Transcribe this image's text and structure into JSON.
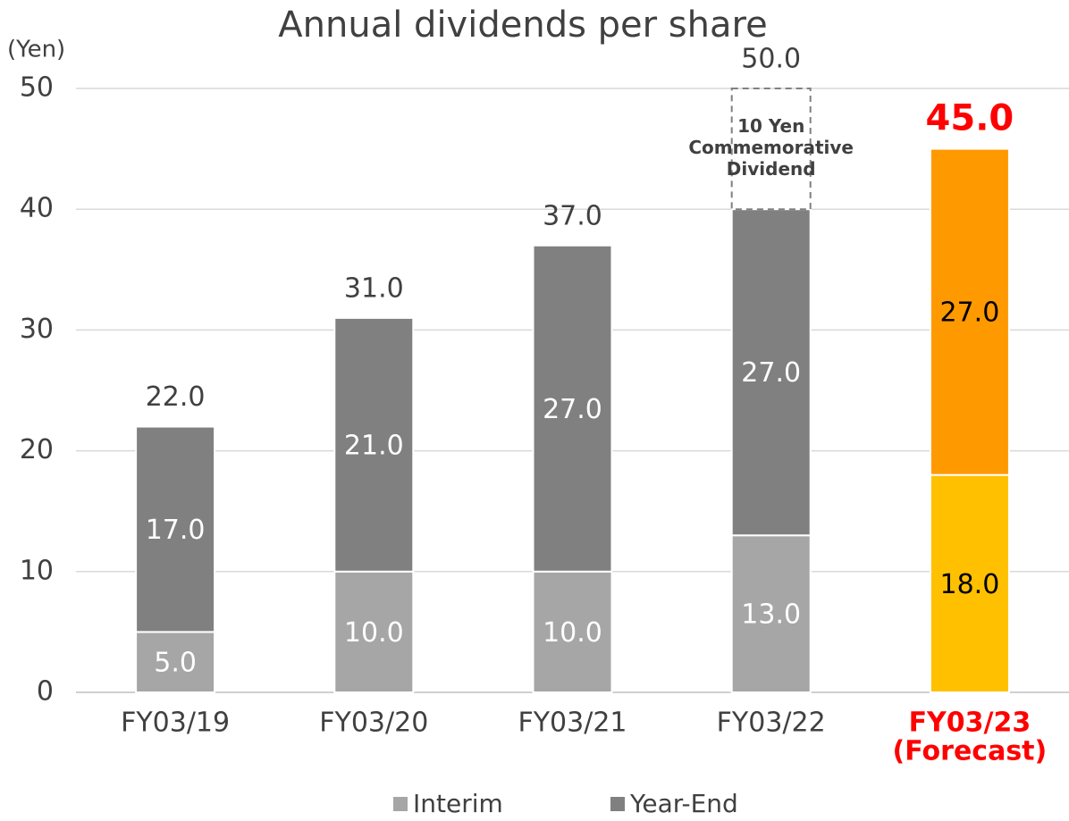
{
  "chart_data": {
    "type": "stacked_bar",
    "title": "Annual dividends per share",
    "y_label": "(Yen)",
    "categories": [
      "FY03/19",
      "FY03/20",
      "FY03/21",
      "FY03/22",
      "FY03/23"
    ],
    "category_notes": [
      null,
      null,
      null,
      null,
      "(Forecast)"
    ],
    "highlight": {
      "index": 4,
      "color": "#ff0000"
    },
    "series": [
      {
        "name": "Interim",
        "color": "#a6a6a6",
        "colors": [
          "#a6a6a6",
          "#a6a6a6",
          "#a6a6a6",
          "#a6a6a6",
          "#ffc000"
        ],
        "label_colors": [
          "#ffffff",
          "#ffffff",
          "#ffffff",
          "#ffffff",
          "#000000"
        ],
        "values": [
          5,
          10,
          10,
          13,
          18
        ],
        "value_labels": [
          "5.0",
          "10.0",
          "10.0",
          "13.0",
          "18.0"
        ]
      },
      {
        "name": "Year-End",
        "color": "#808080",
        "colors": [
          "#808080",
          "#808080",
          "#808080",
          "#808080",
          "#ff9900"
        ],
        "label_colors": [
          "#ffffff",
          "#ffffff",
          "#ffffff",
          "#ffffff",
          "#000000"
        ],
        "values": [
          17,
          21,
          27,
          27,
          27
        ],
        "value_labels": [
          "17.0",
          "21.0",
          "27.0",
          "27.0",
          "27.0"
        ]
      }
    ],
    "totals": {
      "values": [
        22,
        31,
        37,
        50,
        45
      ],
      "value_labels": [
        "22.0",
        "31.0",
        "37.0",
        "50.0",
        "45.0"
      ]
    },
    "annotation": {
      "category_index": 3,
      "value": 10,
      "lines": [
        "10 Yen",
        "Commemorative",
        "Dividend"
      ]
    },
    "ylim": [
      0,
      50
    ],
    "yticks": [
      0,
      10,
      20,
      30,
      40,
      50
    ],
    "grid": true,
    "legend": "bottom"
  }
}
